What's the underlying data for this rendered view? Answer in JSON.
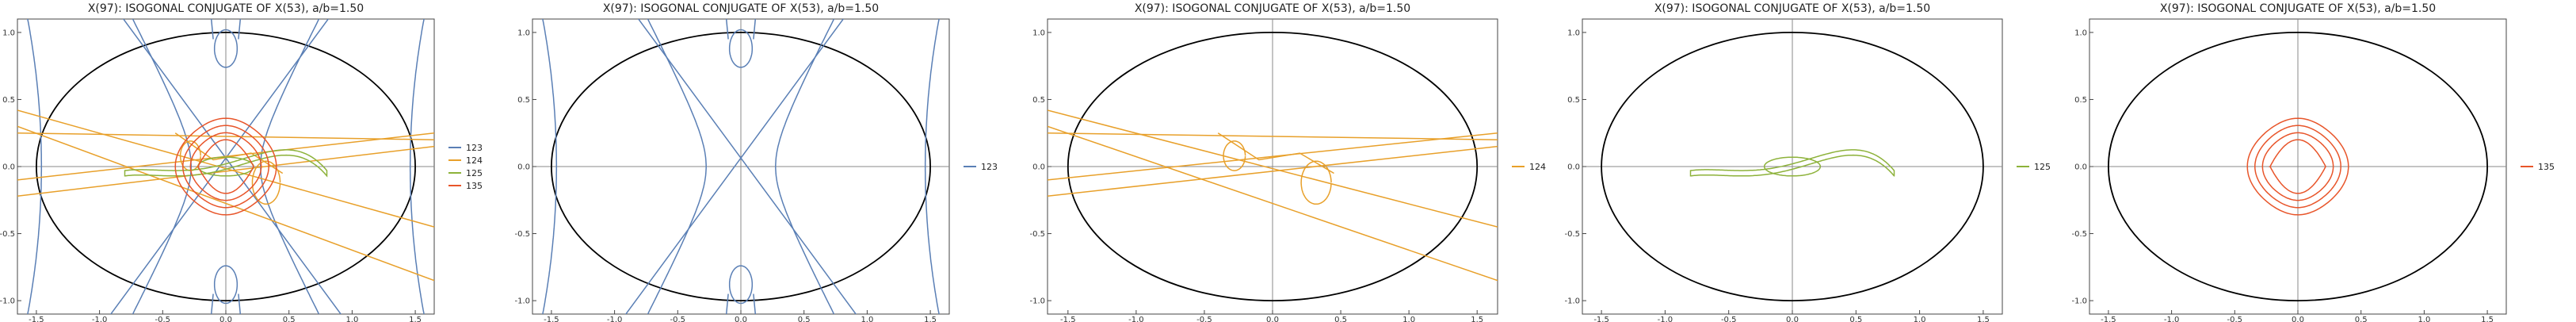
{
  "chart_data": [
    {
      "type": "line",
      "title": "X(97): ISOGONAL CONJUGATE OF X(53), a/b=1.50",
      "xlim": [
        -1.65,
        1.65
      ],
      "ylim": [
        -1.1,
        1.1
      ],
      "xticks": [
        "-1.5",
        "-1.0",
        "-0.5",
        "0.0",
        "0.5",
        "1.0",
        "1.5"
      ],
      "yticks": [
        "-1.0",
        "-0.5",
        "0.0",
        "0.5",
        "1.0"
      ],
      "ellipse": {
        "a": 1.5,
        "b": 1.0,
        "color": "#000000"
      },
      "legend_position": "right",
      "series": [
        {
          "name": "123",
          "color": "#5a7fb5"
        },
        {
          "name": "124",
          "color": "#e8a02a"
        },
        {
          "name": "125",
          "color": "#8db23a"
        },
        {
          "name": "135",
          "color": "#e8552a"
        }
      ]
    },
    {
      "type": "line",
      "title": "X(97): ISOGONAL CONJUGATE OF X(53), a/b=1.50",
      "xlim": [
        -1.65,
        1.65
      ],
      "ylim": [
        -1.1,
        1.1
      ],
      "xticks": [
        "-1.5",
        "-1.0",
        "-0.5",
        "0.0",
        "0.5",
        "1.0",
        "1.5"
      ],
      "yticks": [
        "-1.0",
        "-0.5",
        "0.0",
        "0.5",
        "1.0"
      ],
      "ellipse": {
        "a": 1.5,
        "b": 1.0,
        "color": "#000000"
      },
      "legend_position": "right",
      "series": [
        {
          "name": "123",
          "color": "#5a7fb5"
        }
      ]
    },
    {
      "type": "line",
      "title": "X(97): ISOGONAL CONJUGATE OF X(53), a/b=1.50",
      "xlim": [
        -1.65,
        1.65
      ],
      "ylim": [
        -1.1,
        1.1
      ],
      "xticks": [
        "-1.5",
        "-1.0",
        "-0.5",
        "0.0",
        "0.5",
        "1.0",
        "1.5"
      ],
      "yticks": [
        "-1.0",
        "-0.5",
        "0.0",
        "0.5",
        "1.0"
      ],
      "ellipse": {
        "a": 1.5,
        "b": 1.0,
        "color": "#000000"
      },
      "legend_position": "right",
      "series": [
        {
          "name": "124",
          "color": "#e8a02a"
        }
      ]
    },
    {
      "type": "line",
      "title": "X(97): ISOGONAL CONJUGATE OF X(53), a/b=1.50",
      "xlim": [
        -1.65,
        1.65
      ],
      "ylim": [
        -1.1,
        1.1
      ],
      "xticks": [
        "-1.5",
        "-1.0",
        "-0.5",
        "0.0",
        "0.5",
        "1.0",
        "1.5"
      ],
      "yticks": [
        "-1.0",
        "-0.5",
        "0.0",
        "0.5",
        "1.0"
      ],
      "ellipse": {
        "a": 1.5,
        "b": 1.0,
        "color": "#000000"
      },
      "legend_position": "right",
      "series": [
        {
          "name": "125",
          "color": "#8db23a"
        }
      ]
    },
    {
      "type": "line",
      "title": "X(97): ISOGONAL CONJUGATE OF X(53), a/b=1.50",
      "xlim": [
        -1.65,
        1.65
      ],
      "ylim": [
        -1.1,
        1.1
      ],
      "xticks": [
        "-1.5",
        "-1.0",
        "-0.5",
        "0.0",
        "0.5",
        "1.0",
        "1.5"
      ],
      "yticks": [
        "-1.0",
        "-0.5",
        "0.0",
        "0.5",
        "1.0"
      ],
      "ellipse": {
        "a": 1.5,
        "b": 1.0,
        "color": "#000000"
      },
      "legend_position": "right",
      "series": [
        {
          "name": "135",
          "color": "#e8552a"
        }
      ]
    }
  ]
}
